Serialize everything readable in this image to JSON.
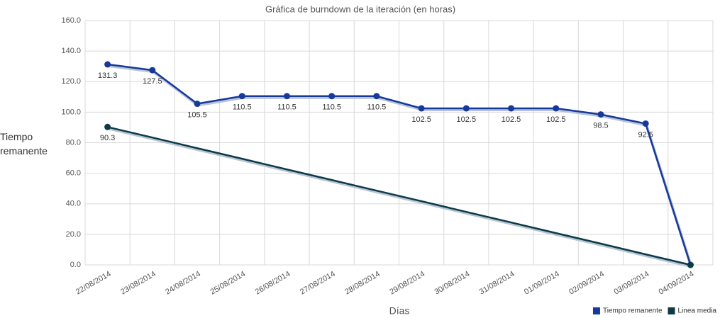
{
  "chart_data": {
    "type": "line",
    "title": "Gráfica de burndown de la iteración (en horas)",
    "y_label": "Tiempo remanente",
    "x_label": "Días",
    "categories": [
      "22/08/2014",
      "23/08/2014",
      "24/08/2014",
      "25/08/2014",
      "26/08/2014",
      "27/08/2014",
      "28/08/2014",
      "29/08/2014",
      "30/08/2014",
      "31/08/2014",
      "01/09/2014",
      "02/09/2014",
      "03/09/2014",
      "04/09/2014"
    ],
    "series": [
      {
        "name": "Tiempo remanente",
        "color": "#17399b",
        "values": [
          131.3,
          127.5,
          105.5,
          110.5,
          110.5,
          110.5,
          110.5,
          102.5,
          102.5,
          102.5,
          102.5,
          98.5,
          92.5,
          0
        ],
        "value_labels": [
          "131.3",
          "127.5",
          "105.5",
          "110.5",
          "110.5",
          "110.5",
          "110.5",
          "102.5",
          "102.5",
          "102.5",
          "102.5",
          "98.5",
          "92.5",
          null
        ]
      },
      {
        "name": "Linea media",
        "color": "#0d3a46",
        "values": [
          90.3,
          83.4,
          76.4,
          69.5,
          62.5,
          55.6,
          48.6,
          41.7,
          34.7,
          27.8,
          20.8,
          13.9,
          6.9,
          0
        ],
        "value_labels": [
          "90.3",
          null,
          null,
          null,
          null,
          null,
          null,
          null,
          null,
          null,
          null,
          null,
          null,
          null
        ]
      }
    ],
    "ylim": [
      0,
      160
    ],
    "yticks": [
      {
        "value": 0,
        "label": "0.0"
      },
      {
        "value": 20,
        "label": "20.0"
      },
      {
        "value": 40,
        "label": "40.0"
      },
      {
        "value": 60,
        "label": "60.0"
      },
      {
        "value": 80,
        "label": "80.0"
      },
      {
        "value": 100,
        "label": "100.0"
      },
      {
        "value": 120,
        "label": "120.0"
      },
      {
        "value": 140,
        "label": "140.0"
      },
      {
        "value": 160,
        "label": "160.0"
      }
    ],
    "grid": true,
    "legend": "bottom-right"
  }
}
